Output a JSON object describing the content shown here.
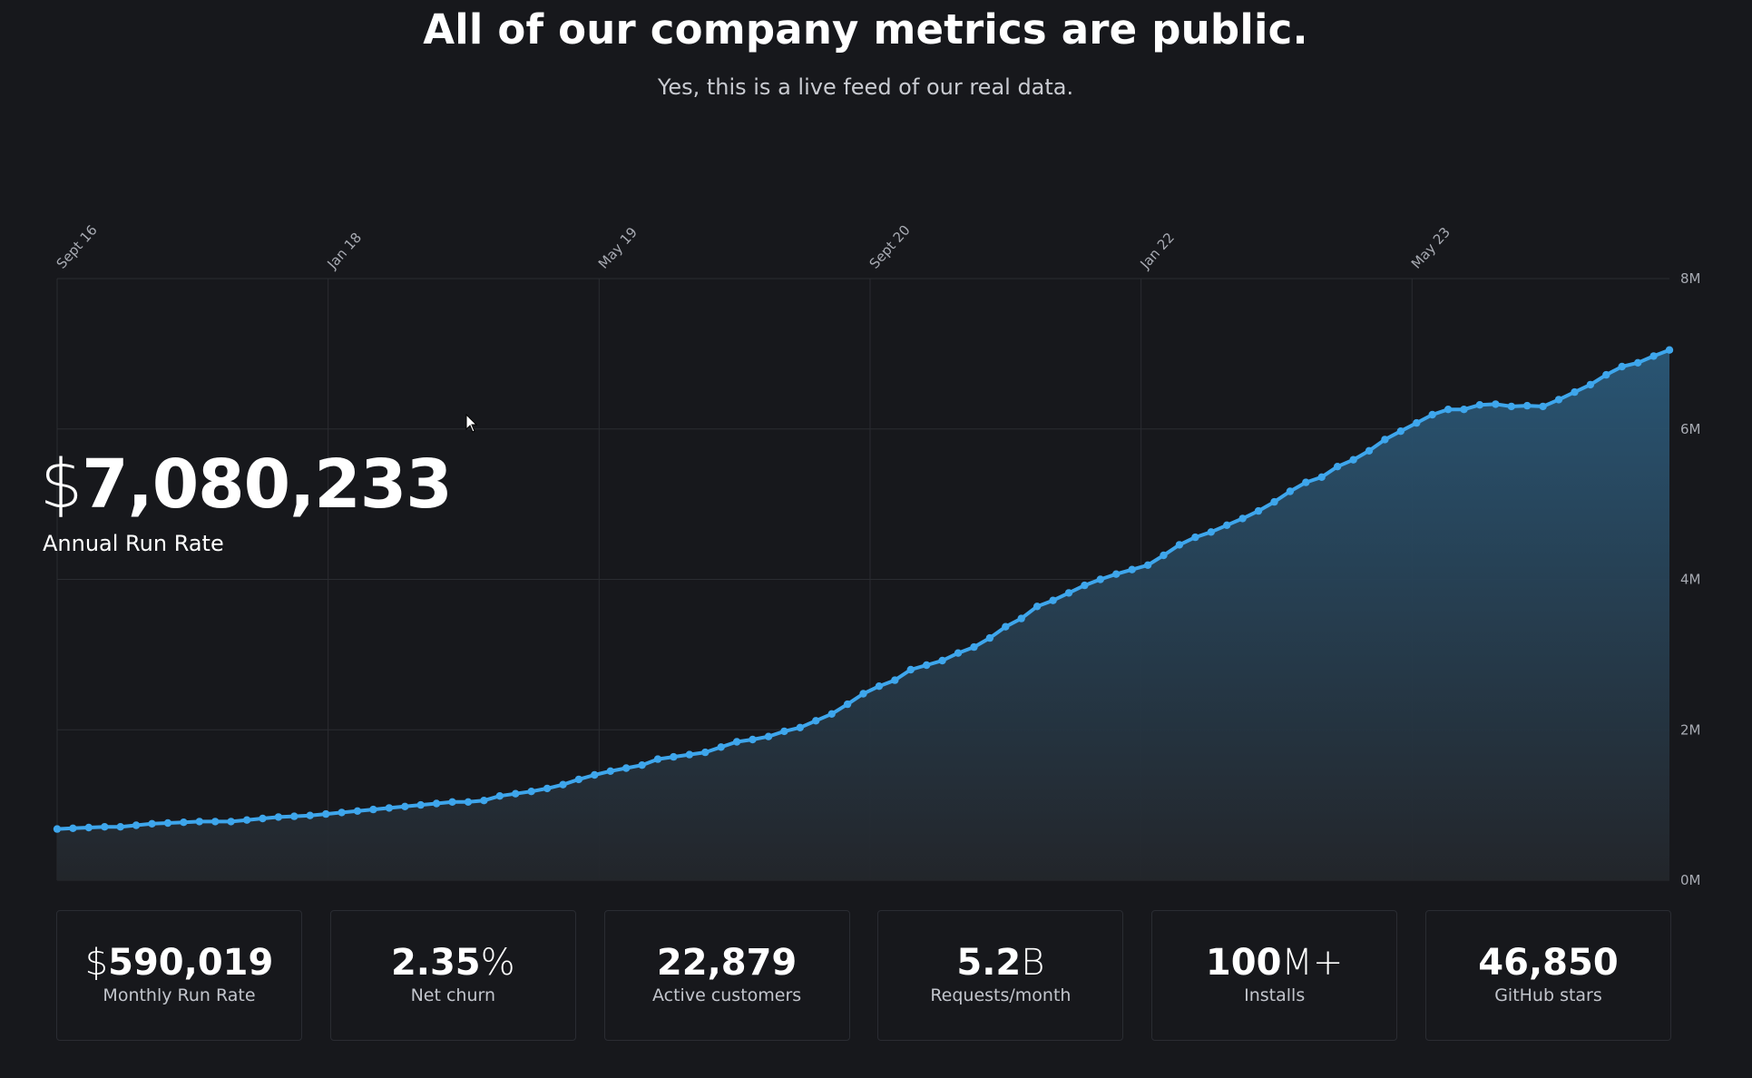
{
  "header": {
    "title": "All of our company metrics are public.",
    "subtitle": "Yes, this is a live feed of our real data."
  },
  "headline": {
    "currency": "$",
    "value": "7,080,233",
    "label": "Annual Run Rate"
  },
  "colors": {
    "background": "#17181c",
    "line": "#3ea6ec",
    "area_top": "#2a5878",
    "grid": "#2a2c31"
  },
  "metrics": [
    {
      "prefix": "$",
      "value": "590,019",
      "suffix": "",
      "label": "Monthly Run Rate"
    },
    {
      "prefix": "",
      "value": "2.35",
      "suffix": "%",
      "label": "Net churn"
    },
    {
      "prefix": "",
      "value": "22,879",
      "suffix": "",
      "label": "Active customers"
    },
    {
      "prefix": "",
      "value": "5.2",
      "suffix": "B",
      "label": "Requests/month"
    },
    {
      "prefix": "",
      "value": "100",
      "suffix": "M+",
      "label": "Installs"
    },
    {
      "prefix": "",
      "value": "46,850",
      "suffix": "",
      "label": "GitHub stars"
    }
  ],
  "chart_data": {
    "type": "area",
    "title": "",
    "xlabel": "",
    "ylabel": "",
    "grid": true,
    "ylim": [
      0,
      8
    ],
    "y_unit": "M",
    "y_ticks": [
      "8M",
      "6M",
      "4M",
      "2M",
      "0M"
    ],
    "x_ticks": [
      "Sept 16",
      "Jan 18",
      "May 19",
      "Sept 20",
      "Jan 22",
      "May 23"
    ],
    "series": [
      {
        "values": [
          0.68,
          0.69,
          0.7,
          0.71,
          0.71,
          0.73,
          0.75,
          0.76,
          0.77,
          0.78,
          0.78,
          0.78,
          0.8,
          0.82,
          0.84,
          0.85,
          0.86,
          0.88,
          0.9,
          0.92,
          0.94,
          0.96,
          0.98,
          1.0,
          1.02,
          1.04,
          1.04,
          1.06,
          1.12,
          1.15,
          1.18,
          1.22,
          1.27,
          1.34,
          1.4,
          1.45,
          1.49,
          1.53,
          1.61,
          1.64,
          1.67,
          1.7,
          1.77,
          1.84,
          1.87,
          1.91,
          1.98,
          2.03,
          2.12,
          2.21,
          2.34,
          2.48,
          2.58,
          2.66,
          2.8,
          2.86,
          2.92,
          3.02,
          3.1,
          3.22,
          3.37,
          3.48,
          3.64,
          3.72,
          3.82,
          3.92,
          4.0,
          4.07,
          4.13,
          4.19,
          4.32,
          4.46,
          4.56,
          4.63,
          4.72,
          4.81,
          4.91,
          5.03,
          5.17,
          5.29,
          5.36,
          5.5,
          5.59,
          5.71,
          5.86,
          5.97,
          6.08,
          6.19,
          6.26,
          6.26,
          6.32,
          6.33,
          6.3,
          6.31,
          6.3,
          6.39,
          6.49,
          6.59,
          6.72,
          6.83,
          6.88,
          6.97,
          7.05
        ]
      }
    ]
  }
}
